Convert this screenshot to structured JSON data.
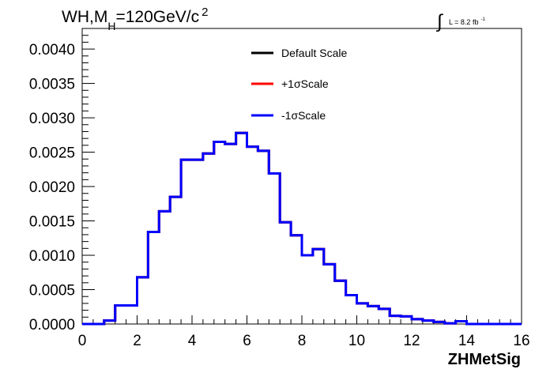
{
  "chart_data": {
    "type": "line",
    "title": "WH,M",
    "title_sub": "H",
    "title_rest": "=120GeV/c",
    "title_sup": "2",
    "lumi_label": "L = 8.2 fb",
    "lumi_sup": "-1",
    "lumi_integral": "∫",
    "xlabel": "ZHMetSig",
    "ylabel": "",
    "xlim": [
      0,
      16
    ],
    "ylim": [
      0,
      0.0043
    ],
    "x_ticks": [
      "0",
      "2",
      "4",
      "6",
      "8",
      "10",
      "12",
      "14",
      "16"
    ],
    "y_ticks": [
      "0.0000",
      "0.0005",
      "0.0010",
      "0.0015",
      "0.0020",
      "0.0025",
      "0.0030",
      "0.0035",
      "0.0040"
    ],
    "legend_position": "top-center",
    "grid": false,
    "bin_edges": [
      0,
      0.4,
      0.8,
      1.2,
      1.6,
      2.0,
      2.4,
      2.8,
      3.2,
      3.6,
      4.0,
      4.4,
      4.8,
      5.2,
      5.6,
      6.0,
      6.4,
      6.8,
      7.2,
      7.6,
      8.0,
      8.4,
      8.8,
      9.2,
      9.6,
      10.0,
      10.4,
      10.8,
      11.2,
      11.6,
      12.0,
      12.4,
      12.8,
      13.2,
      13.6,
      14.0,
      14.4,
      14.8,
      15.2,
      15.6,
      16.0
    ],
    "series": [
      {
        "name": "Default Scale",
        "color": "#000000",
        "values": [
          0,
          0,
          5e-05,
          0.00027,
          0.00027,
          0.00068,
          0.00134,
          0.00164,
          0.00185,
          0.00239,
          0.00239,
          0.00248,
          0.00265,
          0.00262,
          0.00278,
          0.00258,
          0.00252,
          0.00219,
          0.00148,
          0.00129,
          0.001,
          0.00109,
          0.00087,
          0.00063,
          0.00042,
          0.0003,
          0.00026,
          0.00022,
          0.00012,
          0.00011,
          7e-05,
          5e-05,
          3e-05,
          1e-05,
          4e-05,
          0,
          0,
          0,
          0,
          0
        ]
      },
      {
        "name": "+1σScale",
        "color": "#ff0000",
        "values": [
          0,
          0,
          5e-05,
          0.00027,
          0.00027,
          0.00068,
          0.00134,
          0.00164,
          0.00185,
          0.00239,
          0.00239,
          0.00248,
          0.00265,
          0.00262,
          0.00278,
          0.00258,
          0.00252,
          0.00219,
          0.00148,
          0.00129,
          0.001,
          0.00109,
          0.00087,
          0.00063,
          0.00042,
          0.0003,
          0.00026,
          0.00022,
          0.00012,
          0.00011,
          7e-05,
          5e-05,
          3e-05,
          1e-05,
          4e-05,
          0,
          0,
          0,
          0,
          0
        ]
      },
      {
        "name": "-1σScale",
        "color": "#0000ff",
        "values": [
          0,
          0,
          5e-05,
          0.00027,
          0.00027,
          0.00068,
          0.00134,
          0.00164,
          0.00185,
          0.00239,
          0.00239,
          0.00248,
          0.00265,
          0.00262,
          0.00278,
          0.00258,
          0.00252,
          0.00219,
          0.00148,
          0.00129,
          0.001,
          0.00109,
          0.00087,
          0.00063,
          0.00042,
          0.0003,
          0.00026,
          0.00022,
          0.00012,
          0.00011,
          7e-05,
          5e-05,
          3e-05,
          1e-05,
          4e-05,
          0,
          0,
          0,
          0,
          0
        ]
      }
    ]
  }
}
